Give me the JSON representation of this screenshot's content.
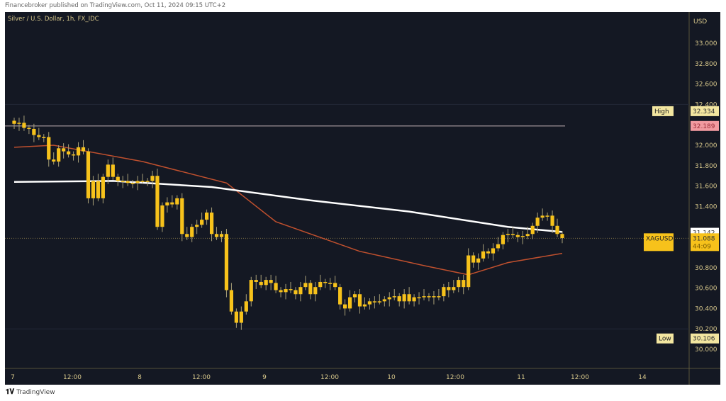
{
  "header": {
    "published": "Financebroker published on TradingView.com, Oct 11, 2024 09:15 UTC+2"
  },
  "footer": {
    "logo_text": "TradingView",
    "logo_mark": "TV"
  },
  "chart_data": {
    "type": "candlestick",
    "title": "Silver / U.S. Dollar, 1h, FX_IDC",
    "currency": "USD",
    "ylim": [
      29.85,
      33.3
    ],
    "y_ticks": [
      "33.000",
      "32.800",
      "32.600",
      "32.400",
      "32.000",
      "31.800",
      "31.600",
      "31.400",
      "30.800",
      "30.600",
      "30.400",
      "30.200",
      "30.000"
    ],
    "x_ticks": [
      "7",
      "12:00",
      "8",
      "12:00",
      "9",
      "12:00",
      "10",
      "12:00",
      "11",
      "12:00",
      "14"
    ],
    "first_open": 32.24,
    "close": [
      32.21,
      32.22,
      32.17,
      32.16,
      32.1,
      32.08,
      32.08,
      31.86,
      31.84,
      31.97,
      31.94,
      31.91,
      31.9,
      31.98,
      31.94,
      31.48,
      31.65,
      31.48,
      31.69,
      31.81,
      31.69,
      31.65,
      31.65,
      31.63,
      31.63,
      31.65,
      31.65,
      31.65,
      31.7,
      31.2,
      31.41,
      31.44,
      31.42,
      31.48,
      31.13,
      31.1,
      31.2,
      31.22,
      31.27,
      31.34,
      31.13,
      31.1,
      31.13,
      30.58,
      30.37,
      30.26,
      30.37,
      30.47,
      30.68,
      30.66,
      30.63,
      30.68,
      30.65,
      30.58,
      30.56,
      30.59,
      30.58,
      30.54,
      30.61,
      30.65,
      30.54,
      30.61,
      30.66,
      30.65,
      30.65,
      30.61,
      30.44,
      30.4,
      30.51,
      30.54,
      30.42,
      30.44,
      30.47,
      30.47,
      30.47,
      30.49,
      30.51,
      30.52,
      30.47,
      30.54,
      30.47,
      30.51,
      30.51,
      30.52,
      30.52,
      30.51,
      30.52,
      30.61,
      30.58,
      30.61,
      30.68,
      30.61,
      30.92,
      30.85,
      30.89,
      30.96,
      30.94,
      30.99,
      31.03,
      31.12,
      31.13,
      31.12,
      31.1,
      31.11,
      31.13,
      31.21,
      31.29,
      31.31,
      31.31,
      31.21,
      31.13,
      31.09
    ],
    "ma_slow": [
      [
        0,
        31.64
      ],
      [
        20,
        31.65
      ],
      [
        40,
        31.59
      ],
      [
        60,
        31.46
      ],
      [
        80,
        31.35
      ],
      [
        100,
        31.2
      ],
      [
        111,
        31.15
      ]
    ],
    "ma_fast": [
      [
        0,
        31.98
      ],
      [
        8,
        32.0
      ],
      [
        26,
        31.84
      ],
      [
        43,
        31.63
      ],
      [
        53,
        31.25
      ],
      [
        70,
        30.96
      ],
      [
        83,
        30.82
      ],
      [
        92,
        30.73
      ],
      [
        100,
        30.85
      ],
      [
        111,
        30.94
      ]
    ],
    "horizontal_line": 32.189,
    "markers": {
      "high": {
        "label": "High",
        "value": "32.334",
        "color": "#f3e6a0"
      },
      "line": {
        "value": "32.189",
        "color": "#f19aa0"
      },
      "ma": {
        "value": "31.142",
        "color": "#ffffff"
      },
      "last": {
        "label": "XAGUSD",
        "value": "31.088",
        "countdown": "44:09",
        "color": "#f7c21b"
      },
      "low": {
        "label": "Low",
        "value": "30.106",
        "color": "#f3e6a0"
      }
    },
    "colors": {
      "candle": "#f7c21b",
      "wick": "#a89f78",
      "ma_slow": "#ffffff",
      "ma_fast": "#c0502e",
      "axis_text": "#d9c98c"
    }
  }
}
